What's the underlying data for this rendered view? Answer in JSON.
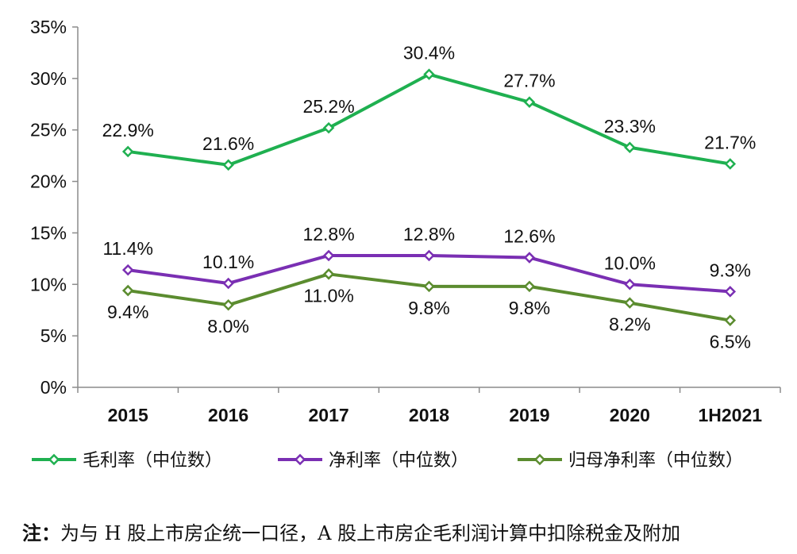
{
  "chart_data": {
    "type": "line",
    "categories": [
      "2015",
      "2016",
      "2017",
      "2018",
      "2019",
      "2020",
      "1H2021"
    ],
    "ylim": [
      0,
      35
    ],
    "yticks": [
      "0%",
      "5%",
      "10%",
      "15%",
      "20%",
      "25%",
      "30%",
      "35%"
    ],
    "series": [
      {
        "name": "毛利率（中位数）",
        "color": "#1fb050",
        "values": [
          22.9,
          21.6,
          25.2,
          30.4,
          27.7,
          23.3,
          21.7
        ],
        "labels": [
          "22.9%",
          "21.6%",
          "25.2%",
          "30.4%",
          "27.7%",
          "23.3%",
          "21.7%"
        ],
        "label_side": [
          "above",
          "above",
          "above",
          "above",
          "above",
          "above",
          "above"
        ]
      },
      {
        "name": "净利率（中位数）",
        "color": "#7a2fb3",
        "values": [
          11.4,
          10.1,
          12.8,
          12.8,
          12.6,
          10.0,
          9.3
        ],
        "labels": [
          "11.4%",
          "10.1%",
          "12.8%",
          "12.8%",
          "12.6%",
          "10.0%",
          "9.3%"
        ],
        "label_side": [
          "above",
          "above",
          "above",
          "above",
          "above",
          "above",
          "above"
        ]
      },
      {
        "name": "归母净利率（中位数）",
        "color": "#5b8c2f",
        "values": [
          9.4,
          8.0,
          11.0,
          9.8,
          9.8,
          8.2,
          6.5
        ],
        "labels": [
          "9.4%",
          "8.0%",
          "11.0%",
          "9.8%",
          "9.8%",
          "8.2%",
          "6.5%"
        ],
        "label_side": [
          "below",
          "below",
          "below",
          "below",
          "below",
          "below",
          "below"
        ]
      }
    ],
    "legend_position": "bottom"
  },
  "note": {
    "label": "注：",
    "text": "为与 H 股上市房企统一口径，A 股上市房企毛利润计算中扣除税金及附加"
  }
}
